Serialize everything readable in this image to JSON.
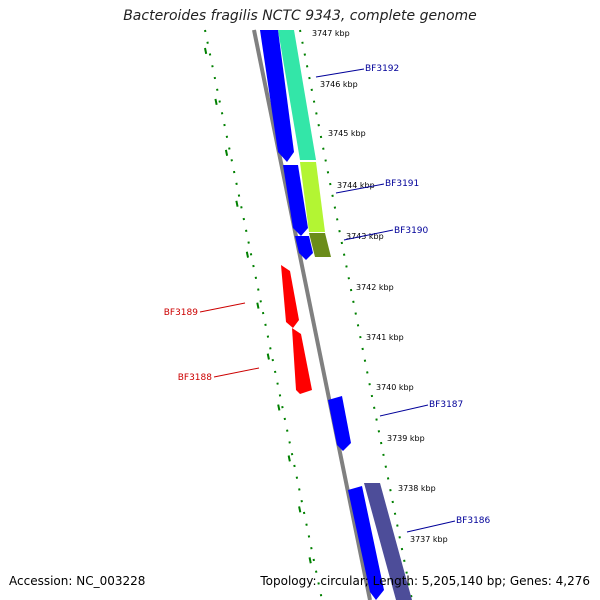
{
  "title": "Bacteroides fragilis NCTC 9343, complete genome",
  "footer": {
    "accession": "Accession: NC_003228",
    "topology": "Topology: circular; Length: 5,205,140 bp; Genes: 4,276"
  },
  "colors": {
    "backbone": "#808080",
    "forward_cds": "#0000ff",
    "reverse_cds": "#ff0000",
    "label_forward": "#000099",
    "label_reverse": "#cc0000",
    "gc_track": "#008000",
    "ring_aqua": "#33e6a8",
    "ring_lime": "#b3f533",
    "ring_olive": "#6b8c1a",
    "ring_slate": "#4d4d99"
  },
  "ticks": [
    {
      "label": "3747 kbp"
    },
    {
      "label": "3746 kbp"
    },
    {
      "label": "3745 kbp"
    },
    {
      "label": "3744 kbp"
    },
    {
      "label": "3743 kbp"
    },
    {
      "label": "3742 kbp"
    },
    {
      "label": "3741 kbp"
    },
    {
      "label": "3740 kbp"
    },
    {
      "label": "3739 kbp"
    },
    {
      "label": "3738 kbp"
    },
    {
      "label": "3737 kbp"
    }
  ],
  "genes": [
    {
      "label": "BF3192",
      "strand": "forward"
    },
    {
      "label": "BF3191",
      "strand": "forward"
    },
    {
      "label": "BF3190",
      "strand": "forward"
    },
    {
      "label": "BF3189",
      "strand": "reverse"
    },
    {
      "label": "BF3188",
      "strand": "reverse"
    },
    {
      "label": "BF3187",
      "strand": "forward"
    },
    {
      "label": "BF3186",
      "strand": "forward"
    }
  ]
}
